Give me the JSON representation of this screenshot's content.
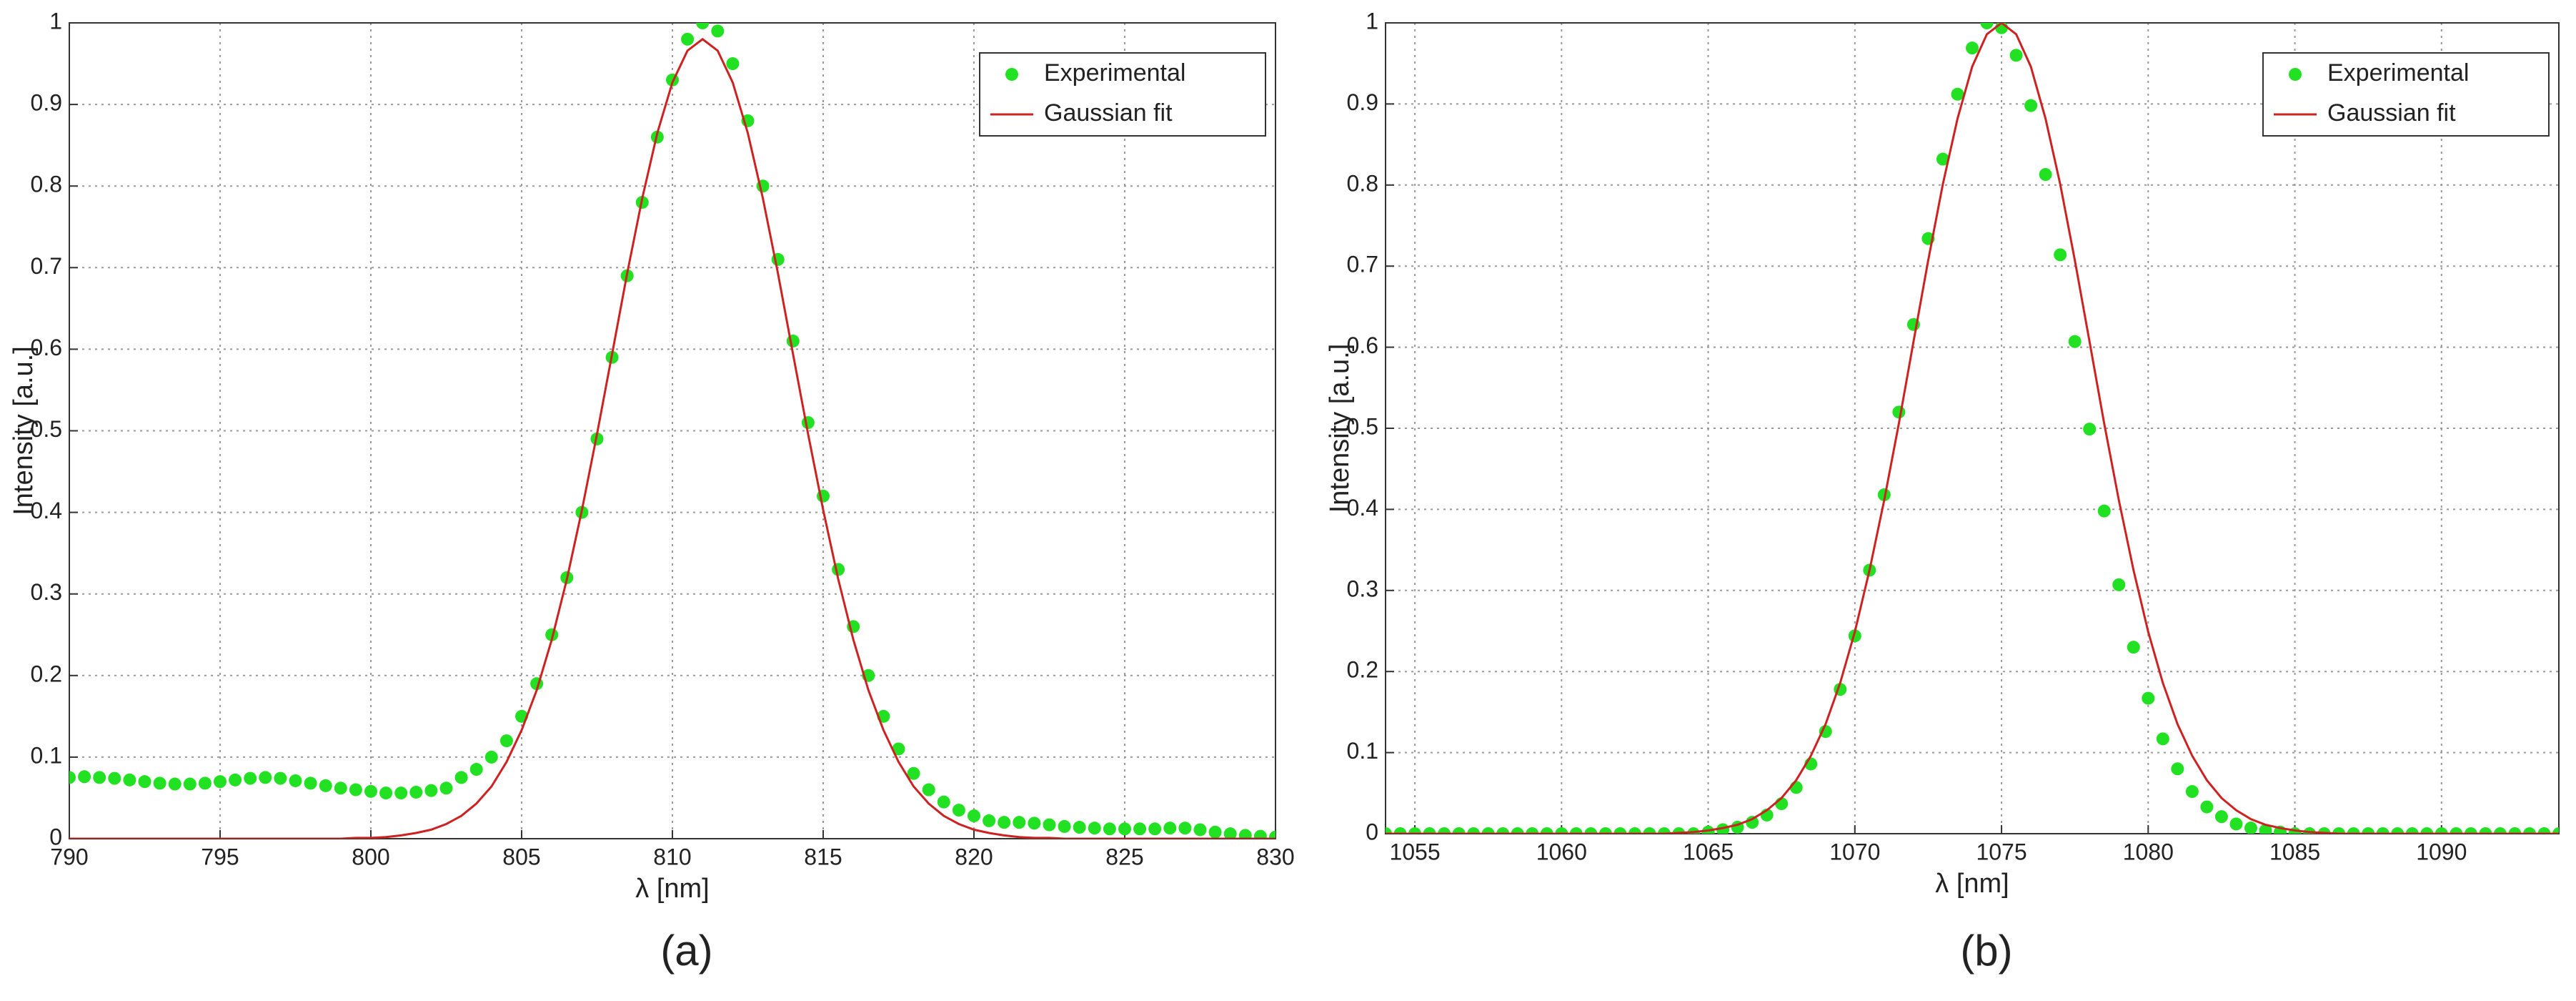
{
  "chart_data": [
    {
      "type": "line",
      "caption": "(a)",
      "xlabel": "λ [nm]",
      "ylabel": "Intensity [a.u.]",
      "xlim": [
        790,
        830
      ],
      "xticks": [
        790,
        795,
        800,
        805,
        810,
        815,
        820,
        825,
        830
      ],
      "ylim": [
        0,
        1
      ],
      "yticks": [
        0,
        0.1,
        0.2,
        0.3,
        0.4,
        0.5,
        0.6,
        0.7,
        0.8,
        0.9,
        1
      ],
      "grid": true,
      "legend": "upper right",
      "x": [
        790,
        790.5,
        791,
        791.5,
        792,
        792.5,
        793,
        793.5,
        794,
        794.5,
        795,
        795.5,
        796,
        796.5,
        797,
        797.5,
        798,
        798.5,
        799,
        799.5,
        800,
        800.5,
        801,
        801.5,
        802,
        802.5,
        803,
        803.5,
        804,
        804.5,
        805,
        805.5,
        806,
        806.5,
        807,
        807.5,
        808,
        808.5,
        809,
        809.5,
        810,
        810.5,
        811,
        811.5,
        812,
        812.5,
        813,
        813.5,
        814,
        814.5,
        815,
        815.5,
        816,
        816.5,
        817,
        817.5,
        818,
        818.5,
        819,
        819.5,
        820,
        820.5,
        821,
        821.5,
        822,
        822.5,
        823,
        823.5,
        824,
        824.5,
        825,
        825.5,
        826,
        826.5,
        827,
        827.5,
        828,
        828.5,
        829,
        829.5,
        830
      ],
      "series": [
        {
          "name": "Experimental",
          "color": "#22e022",
          "mode": "markers",
          "values": [
            0.075,
            0.076,
            0.075,
            0.074,
            0.072,
            0.07,
            0.068,
            0.067,
            0.067,
            0.068,
            0.07,
            0.072,
            0.074,
            0.075,
            0.074,
            0.071,
            0.068,
            0.065,
            0.062,
            0.06,
            0.058,
            0.056,
            0.056,
            0.057,
            0.059,
            0.062,
            0.075,
            0.085,
            0.1,
            0.12,
            0.15,
            0.19,
            0.25,
            0.32,
            0.4,
            0.49,
            0.59,
            0.69,
            0.78,
            0.86,
            0.93,
            0.98,
            1.0,
            0.99,
            0.95,
            0.88,
            0.8,
            0.71,
            0.61,
            0.51,
            0.42,
            0.33,
            0.26,
            0.2,
            0.15,
            0.11,
            0.08,
            0.06,
            0.045,
            0.035,
            0.028,
            0.022,
            0.02,
            0.02,
            0.019,
            0.017,
            0.015,
            0.014,
            0.013,
            0.012,
            0.012,
            0.012,
            0.012,
            0.013,
            0.013,
            0.011,
            0.008,
            0.006,
            0.004,
            0.003,
            0.002
          ]
        },
        {
          "name": "Gaussian fit",
          "color": "#cc2222",
          "mode": "line",
          "values": [
            0,
            0,
            0,
            0,
            0,
            0,
            0,
            0,
            0,
            0,
            0,
            0,
            0,
            0,
            0,
            0,
            0,
            0,
            0,
            0.001,
            0.001,
            0.002,
            0.004,
            0.007,
            0.011,
            0.018,
            0.028,
            0.043,
            0.064,
            0.094,
            0.133,
            0.182,
            0.244,
            0.318,
            0.403,
            0.496,
            0.594,
            0.693,
            0.785,
            0.865,
            0.927,
            0.966,
            0.98,
            0.966,
            0.927,
            0.865,
            0.785,
            0.693,
            0.594,
            0.496,
            0.403,
            0.318,
            0.244,
            0.182,
            0.133,
            0.094,
            0.064,
            0.043,
            0.028,
            0.018,
            0.011,
            0.007,
            0.004,
            0.002,
            0.001,
            0.001,
            0,
            0,
            0,
            0,
            0,
            0,
            0,
            0,
            0,
            0,
            0,
            0,
            0,
            0,
            0
          ]
        }
      ]
    },
    {
      "type": "line",
      "caption": "(b)",
      "xlabel": "λ [nm]",
      "ylabel": "Intensity [a.u.]",
      "xlim": [
        1054,
        1094
      ],
      "xticks": [
        1055,
        1060,
        1065,
        1070,
        1075,
        1080,
        1085,
        1090
      ],
      "ylim": [
        0,
        1
      ],
      "yticks": [
        0,
        0.1,
        0.2,
        0.3,
        0.4,
        0.5,
        0.6,
        0.7,
        0.8,
        0.9,
        1
      ],
      "grid": true,
      "legend": "upper right",
      "x": [
        1054,
        1054.5,
        1055,
        1055.5,
        1056,
        1056.5,
        1057,
        1057.5,
        1058,
        1058.5,
        1059,
        1059.5,
        1060,
        1060.5,
        1061,
        1061.5,
        1062,
        1062.5,
        1063,
        1063.5,
        1064,
        1064.5,
        1065,
        1065.5,
        1066,
        1066.5,
        1067,
        1067.5,
        1068,
        1068.5,
        1069,
        1069.5,
        1070,
        1070.5,
        1071,
        1071.5,
        1072,
        1072.5,
        1073,
        1073.5,
        1074,
        1074.5,
        1075,
        1075.5,
        1076,
        1076.5,
        1077,
        1077.5,
        1078,
        1078.5,
        1079,
        1079.5,
        1080,
        1080.5,
        1081,
        1081.5,
        1082,
        1082.5,
        1083,
        1083.5,
        1084,
        1084.5,
        1085,
        1085.5,
        1086,
        1086.5,
        1087,
        1087.5,
        1088,
        1088.5,
        1089,
        1089.5,
        1090,
        1090.5,
        1091,
        1091.5,
        1092,
        1092.5,
        1093,
        1093.5,
        1094
      ],
      "series": [
        {
          "name": "Experimental",
          "color": "#22e022",
          "mode": "markers",
          "values": [
            0,
            0,
            0,
            0,
            0,
            0,
            0,
            0,
            0,
            0,
            0,
            0,
            0,
            0,
            0,
            0,
            0,
            0,
            0,
            0,
            0,
            0,
            0.002,
            0.005,
            0.008,
            0.014,
            0.023,
            0.037,
            0.057,
            0.086,
            0.126,
            0.178,
            0.244,
            0.325,
            0.418,
            0.52,
            0.628,
            0.734,
            0.832,
            0.912,
            0.969,
            1.0,
            0.994,
            0.96,
            0.898,
            0.813,
            0.714,
            0.607,
            0.499,
            0.398,
            0.307,
            0.23,
            0.167,
            0.117,
            0.08,
            0.052,
            0.033,
            0.021,
            0.012,
            0.007,
            0.004,
            0.002,
            0,
            0,
            0,
            0,
            0,
            0,
            0,
            0,
            0,
            0,
            0,
            0,
            0,
            0,
            0,
            0,
            0,
            0,
            0
          ]
        },
        {
          "name": "Gaussian fit",
          "color": "#cc2222",
          "mode": "line",
          "values": [
            0,
            0,
            0,
            0,
            0,
            0,
            0,
            0,
            0,
            0,
            0,
            0,
            0,
            0,
            0,
            0,
            0,
            0,
            0,
            0,
            0.001,
            0.002,
            0.004,
            0.007,
            0.011,
            0.018,
            0.029,
            0.044,
            0.066,
            0.096,
            0.135,
            0.186,
            0.249,
            0.325,
            0.411,
            0.506,
            0.607,
            0.707,
            0.801,
            0.882,
            0.946,
            0.986,
            1,
            0.986,
            0.946,
            0.882,
            0.801,
            0.707,
            0.607,
            0.506,
            0.411,
            0.325,
            0.249,
            0.186,
            0.135,
            0.096,
            0.066,
            0.044,
            0.029,
            0.018,
            0.011,
            0.007,
            0.004,
            0.002,
            0.001,
            0,
            0,
            0,
            0,
            0,
            0,
            0,
            0,
            0,
            0,
            0,
            0,
            0,
            0,
            0,
            0
          ]
        }
      ]
    }
  ]
}
